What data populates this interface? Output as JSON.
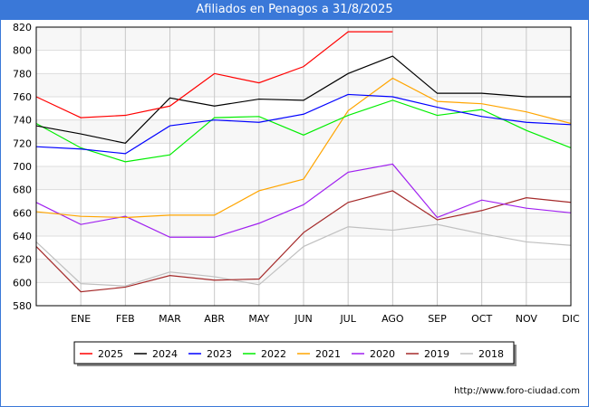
{
  "chart_data": {
    "type": "line",
    "title": "Afiliados en Penagos a 31/8/2025",
    "x_labels": [
      "",
      "ENE",
      "FEB",
      "MAR",
      "ABR",
      "MAY",
      "JUN",
      "JUL",
      "AGO",
      "SEP",
      "OCT",
      "NOV",
      "DIC"
    ],
    "ylim": [
      580,
      820
    ],
    "y_ticks": [
      580,
      600,
      620,
      640,
      660,
      680,
      700,
      720,
      740,
      760,
      780,
      800,
      820
    ],
    "grid": true,
    "legend_position": "bottom",
    "series": [
      {
        "name": "2025",
        "color": "#ff0000",
        "values": [
          760,
          742,
          744,
          752,
          780,
          772,
          786,
          816,
          816
        ]
      },
      {
        "name": "2024",
        "color": "#000000",
        "values": [
          735,
          728,
          720,
          759,
          752,
          758,
          757,
          780,
          795,
          763,
          763,
          760,
          760
        ]
      },
      {
        "name": "2023",
        "color": "#0000ff",
        "values": [
          717,
          715,
          711,
          735,
          740,
          738,
          745,
          762,
          760,
          751,
          743,
          738,
          736
        ]
      },
      {
        "name": "2022",
        "color": "#00ee00",
        "values": [
          737,
          716,
          704,
          710,
          742,
          743,
          727,
          744,
          757,
          744,
          749,
          731,
          716
        ]
      },
      {
        "name": "2021",
        "color": "#ffa500",
        "values": [
          661,
          657,
          656,
          658,
          658,
          679,
          689,
          748,
          776,
          756,
          754,
          747,
          737
        ]
      },
      {
        "name": "2020",
        "color": "#a020f0",
        "values": [
          669,
          650,
          657,
          639,
          639,
          651,
          667,
          695,
          702,
          656,
          671,
          664,
          660
        ]
      },
      {
        "name": "2019",
        "color": "#a52a2a",
        "values": [
          631,
          592,
          596,
          606,
          602,
          603,
          643,
          669,
          679,
          654,
          662,
          673,
          669
        ]
      },
      {
        "name": "2018",
        "color": "#c0c0c0",
        "values": [
          635,
          599,
          597,
          609,
          605,
          598,
          631,
          648,
          645,
          650,
          642,
          635,
          632
        ]
      }
    ]
  },
  "footer": {
    "url": "http://www.foro-ciudad.com"
  }
}
